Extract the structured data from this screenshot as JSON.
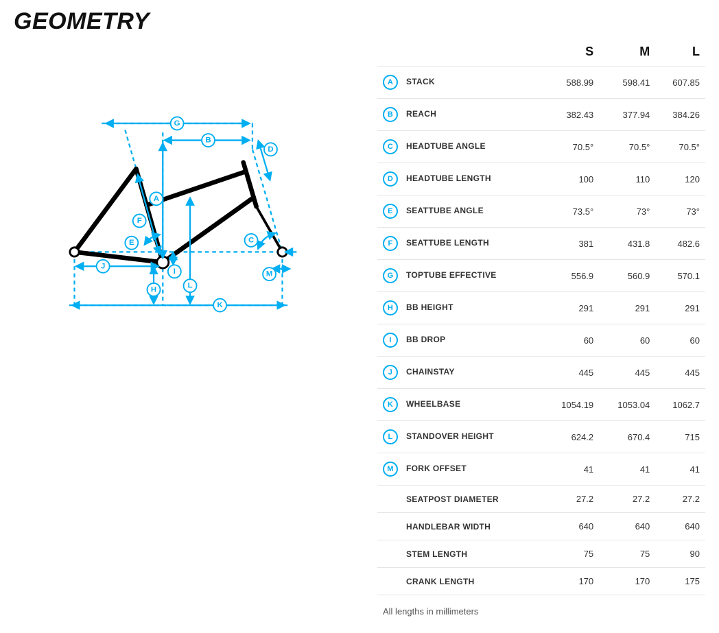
{
  "title": "GEOMETRY",
  "footnote": "All lengths in millimeters",
  "accent_color": "#00aef2",
  "border_color": "#e5e5e5",
  "text_color": "#333333",
  "sizes": [
    "S",
    "M",
    "L"
  ],
  "rows": [
    {
      "key": "A",
      "label": "STACK",
      "values": [
        "588.99",
        "598.41",
        "607.85"
      ]
    },
    {
      "key": "B",
      "label": "REACH",
      "values": [
        "382.43",
        "377.94",
        "384.26"
      ]
    },
    {
      "key": "C",
      "label": "HEADTUBE ANGLE",
      "values": [
        "70.5°",
        "70.5°",
        "70.5°"
      ]
    },
    {
      "key": "D",
      "label": "HEADTUBE LENGTH",
      "values": [
        "100",
        "110",
        "120"
      ]
    },
    {
      "key": "E",
      "label": "SEATTUBE ANGLE",
      "values": [
        "73.5°",
        "73°",
        "73°"
      ]
    },
    {
      "key": "F",
      "label": "SEATTUBE LENGTH",
      "values": [
        "381",
        "431.8",
        "482.6"
      ]
    },
    {
      "key": "G",
      "label": "TOPTUBE EFFECTIVE",
      "values": [
        "556.9",
        "560.9",
        "570.1"
      ]
    },
    {
      "key": "H",
      "label": "BB HEIGHT",
      "values": [
        "291",
        "291",
        "291"
      ]
    },
    {
      "key": "I",
      "label": "BB DROP",
      "values": [
        "60",
        "60",
        "60"
      ]
    },
    {
      "key": "J",
      "label": "CHAINSTAY",
      "values": [
        "445",
        "445",
        "445"
      ]
    },
    {
      "key": "K",
      "label": "WHEELBASE",
      "values": [
        "1054.19",
        "1053.04",
        "1062.7"
      ]
    },
    {
      "key": "L",
      "label": "STANDOVER HEIGHT",
      "values": [
        "624.2",
        "670.4",
        "715"
      ]
    },
    {
      "key": "M",
      "label": "FORK OFFSET",
      "values": [
        "41",
        "41",
        "41"
      ]
    },
    {
      "key": "",
      "label": "SEATPOST DIAMETER",
      "values": [
        "27.2",
        "27.2",
        "27.2"
      ]
    },
    {
      "key": "",
      "label": "HANDLEBAR WIDTH",
      "values": [
        "640",
        "640",
        "640"
      ]
    },
    {
      "key": "",
      "label": "STEM LENGTH",
      "values": [
        "75",
        "75",
        "90"
      ]
    },
    {
      "key": "",
      "label": "CRANK LENGTH",
      "values": [
        "170",
        "170",
        "175"
      ]
    }
  ],
  "diagram": {
    "type": "bike-geometry-schematic",
    "stroke_frame": "#000000",
    "stroke_dim": "#00aef2",
    "labels": [
      "A",
      "B",
      "C",
      "D",
      "E",
      "F",
      "G",
      "H",
      "I",
      "J",
      "K",
      "L",
      "M"
    ]
  }
}
